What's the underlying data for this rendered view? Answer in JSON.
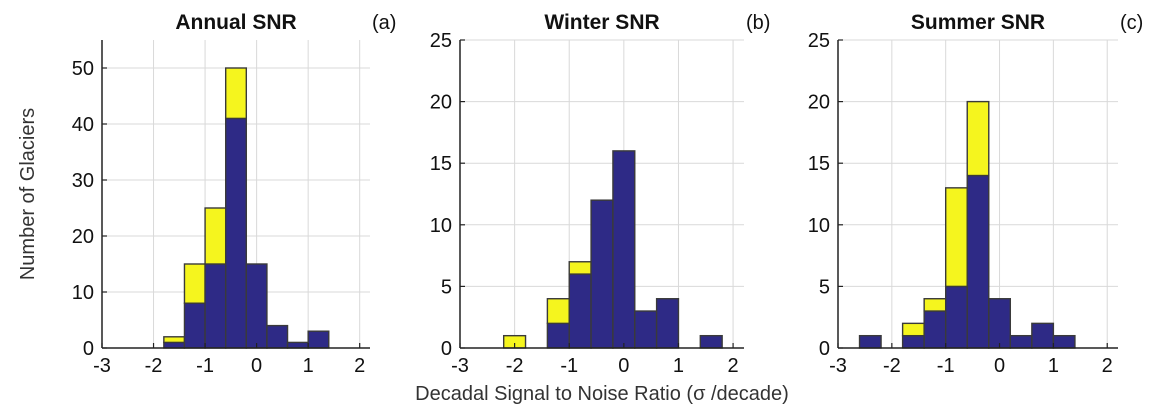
{
  "figure": {
    "xlabel": "Decadal Signal to Noise Ratio (σ /decade)",
    "ylabel": "Number of Glaciers"
  },
  "colors": {
    "primary": "#2e2a86",
    "secondary": "#f5f51e",
    "bar_edge": "#3a3a3a",
    "grid": "#d9d9d9",
    "axis": "#222222"
  },
  "chart_data": [
    {
      "type": "bar",
      "stacked": true,
      "title": "Annual SNR",
      "panel_label": "(a)",
      "xlim": [
        -3,
        2.2
      ],
      "ylim": [
        0,
        55
      ],
      "xticks": [
        -3,
        -2,
        -1,
        0,
        1,
        2
      ],
      "yticks": [
        0,
        10,
        20,
        30,
        40,
        50
      ],
      "bin_width": 0.4,
      "x": [
        -1.6,
        -1.2,
        -0.8,
        -0.4,
        0.0,
        0.4,
        0.8,
        1.2
      ],
      "series": [
        {
          "values": [
            1,
            8,
            15,
            41,
            15,
            4,
            1,
            3
          ]
        },
        {
          "values": [
            1,
            7,
            10,
            9,
            0,
            0,
            0,
            0
          ]
        }
      ],
      "grid": true
    },
    {
      "type": "bar",
      "stacked": true,
      "title": "Winter SNR",
      "panel_label": "(b)",
      "xlim": [
        -3,
        2.2
      ],
      "ylim": [
        0,
        25
      ],
      "xticks": [
        -3,
        -2,
        -1,
        0,
        1,
        2
      ],
      "yticks": [
        0,
        5,
        10,
        15,
        20,
        25
      ],
      "bin_width": 0.4,
      "x": [
        -2.0,
        -1.6,
        -1.2,
        -0.8,
        -0.4,
        0.0,
        0.4,
        0.8,
        1.2,
        1.6
      ],
      "series": [
        {
          "values": [
            0,
            0,
            2,
            6,
            12,
            16,
            3,
            4,
            0,
            1
          ]
        },
        {
          "values": [
            1,
            0,
            2,
            1,
            0,
            0,
            0,
            0,
            0,
            0
          ]
        }
      ],
      "grid": true
    },
    {
      "type": "bar",
      "stacked": true,
      "title": "Summer SNR",
      "panel_label": "(c)",
      "xlim": [
        -3,
        2.2
      ],
      "ylim": [
        0,
        25
      ],
      "xticks": [
        -3,
        -2,
        -1,
        0,
        1,
        2
      ],
      "yticks": [
        0,
        5,
        10,
        15,
        20,
        25
      ],
      "bin_width": 0.4,
      "x": [
        -2.4,
        -2.0,
        -1.6,
        -1.2,
        -0.8,
        -0.4,
        0.0,
        0.4,
        0.8,
        1.2
      ],
      "series": [
        {
          "values": [
            1,
            0,
            1,
            3,
            5,
            14,
            4,
            1,
            2,
            1
          ]
        },
        {
          "values": [
            0,
            0,
            1,
            1,
            8,
            6,
            0,
            0,
            0,
            0
          ]
        }
      ],
      "grid": true
    }
  ]
}
